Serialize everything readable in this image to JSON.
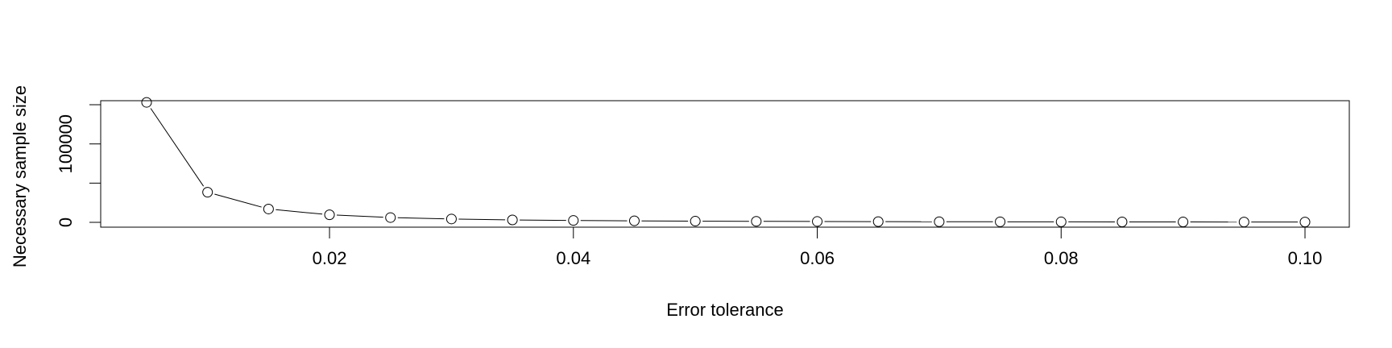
{
  "chart_data": {
    "type": "line",
    "title": "",
    "xlabel": "Error tolerance",
    "ylabel": "Necessary sample size",
    "xlim": [
      0.005,
      0.1
    ],
    "ylim": [
      0,
      150000
    ],
    "x_ticks": [
      0.02,
      0.04,
      0.06,
      0.08,
      0.1
    ],
    "x_tick_labels": [
      "0.02",
      "0.04",
      "0.06",
      "0.08",
      "0.10"
    ],
    "y_ticks": [
      0,
      50000,
      100000,
      150000
    ],
    "y_tick_labels": [
      "0",
      "",
      "100000",
      ""
    ],
    "grid": false,
    "legend": "none",
    "marker": "open-circle",
    "line_color": "#000000",
    "series": [
      {
        "x": [
          0.005,
          0.01,
          0.015,
          0.02,
          0.025,
          0.03,
          0.035,
          0.04,
          0.045,
          0.05,
          0.055,
          0.06,
          0.065,
          0.07,
          0.075,
          0.08,
          0.085,
          0.09,
          0.095,
          0.1
        ],
        "values": [
          153000,
          38400,
          17000,
          9600,
          6100,
          4300,
          3100,
          2400,
          1900,
          1500,
          1300,
          1100,
          900,
          800,
          700,
          600,
          530,
          470,
          430,
          380
        ]
      }
    ]
  }
}
